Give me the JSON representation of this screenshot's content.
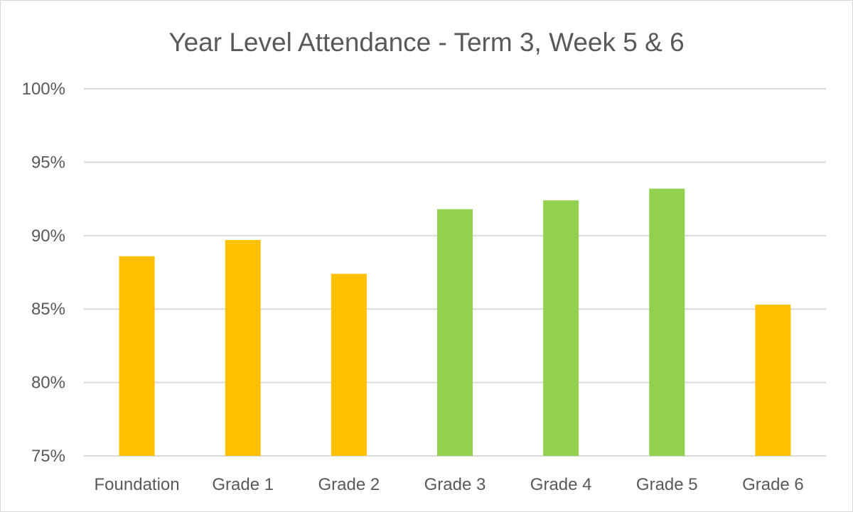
{
  "chart_data": {
    "type": "bar",
    "title": "Year Level Attendance - Term 3, Week 5 & 6",
    "xlabel": "",
    "ylabel": "",
    "categories": [
      "Foundation",
      "Grade 1",
      "Grade 2",
      "Grade 3",
      "Grade 4",
      "Grade 5",
      "Grade 6"
    ],
    "values": [
      88.6,
      89.7,
      87.4,
      91.8,
      92.4,
      93.2,
      85.3
    ],
    "bar_colors": [
      "#ffc000",
      "#ffc000",
      "#ffc000",
      "#92d050",
      "#92d050",
      "#92d050",
      "#ffc000"
    ],
    "ylim": [
      75,
      100
    ],
    "yticks": [
      75,
      80,
      85,
      90,
      95,
      100
    ],
    "ytick_labels": [
      "75%",
      "80%",
      "85%",
      "90%",
      "95%",
      "100%"
    ],
    "grid": true,
    "legend": "none"
  }
}
